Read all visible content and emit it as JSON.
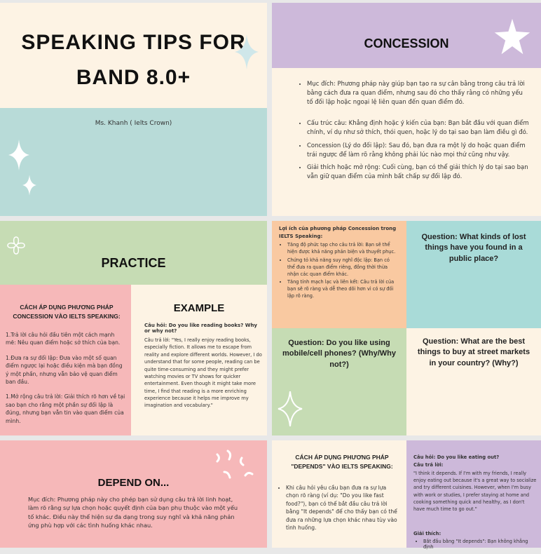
{
  "slides": [
    {
      "title_line1": "SPEAKING TIPS FOR",
      "title_line2": "BAND 8.0+",
      "author": "Ms. Khanh ( Ielts Crown)"
    },
    {
      "title": "CONCESSION",
      "bullets": [
        "Mục đích: Phương pháp này giúp bạn tạo ra sự cân bằng trong câu trả lời bằng cách đưa ra quan điểm, nhưng sau đó cho thấy rằng có những yếu tố đối lập hoặc ngoại lệ liên quan đến quan điểm đó.",
        "Cấu trúc câu: Khẳng định hoặc ý kiến của bạn: Bạn bắt đầu với quan điểm chính, ví dụ như sở thích, thói quen, hoặc lý do tại sao bạn làm điều gì đó.",
        "Concession (Lý do đối lập): Sau đó, bạn đưa ra một lý do hoặc quan điểm trái ngược để làm rõ rằng không phải lúc nào mọi thứ cũng như vậy.",
        "Giải thích hoặc mở rộng: Cuối cùng, bạn có thể giải thích lý do tại sao bạn vẫn giữ quan điểm của mình bất chấp sự đối lập đó."
      ]
    },
    {
      "title": "PRACTICE",
      "method_title": "CÁCH ÁP DỤNG PHƯƠNG PHÁP CONCESSION VÀO IELTS SPEAKING:",
      "steps": [
        "1.Trả lời câu hỏi đầu tiên một cách mạnh mẽ: Nêu quan điểm hoặc sở thích của bạn.",
        "1.Đưa ra sự đối lập: Đưa vào một số quan điểm ngược lại hoặc điều kiện mà bạn đồng ý một phần, nhưng vẫn bảo vệ quan điểm ban đầu.",
        "1.Mở rộng câu trả lời: Giải thích rõ hơn về tại sao bạn cho rằng một phần sự đối lập là đúng, nhưng bạn vẫn tin vào quan điểm của mình."
      ],
      "example_title": "EXAMPLE",
      "example_question": "Câu hỏi: Do you like reading books? Why or why not?",
      "example_answer": "Câu trả lời: \"Yes, I really enjoy reading books, especially fiction. It allows me to escape from reality and explore different worlds. However, I do understand that for some people, reading can be quite time-consuming and they might prefer watching movies or TV shows for quicker entertainment. Even though it might take more time, I find that reading is a more enriching experience because it helps me improve my imagination and vocabulary.\""
    },
    {
      "benefits_title": "Lợi ích của phương pháp Concession trong IELTS Speaking:",
      "benefits": [
        "Tăng độ phức tạp cho câu trả lời: Bạn sẽ thể hiện được khả năng phản biện và thuyết phục.",
        "Chứng tỏ khả năng suy nghĩ độc lập: Bạn có thể đưa ra quan điểm riêng, đồng thời thừa nhận các quan điểm khác.",
        "Tăng tính mạch lạc và liên kết: Câu trả lời của bạn sẽ rõ ràng và dễ theo dõi hơn vì có sự đối lập rõ ràng."
      ],
      "questions": [
        "Question: What kinds of lost things have you found in a public place?",
        "Question: Do you like using mobile/cell phones? (Why/Why not?)",
        "Question: What are the best things to buy at street markets in your country? (Why?)"
      ]
    },
    {
      "title": "DEPEND ON...",
      "text": "Mục đích: Phương pháp này cho phép bạn sử dụng câu trả lời linh hoạt, làm rõ rằng sự lựa chọn hoặc quyết định của bạn phụ thuộc vào một yếu tố khác. Điều này thể hiện sự đa dạng trong suy nghĩ và khả năng phản ứng phù hợp với các tình huống khác nhau."
    },
    {
      "method_title": "CÁCH ÁP DỤNG PHƯƠNG PHÁP \"DEPENDS\" VÀO IELTS SPEAKING:",
      "bullet": "Khi câu hỏi yêu cầu bạn đưa ra sự lựa chọn rõ ràng (ví dụ: \"Do you like fast food?\"), bạn có thể bắt đầu câu trả lời bằng \"It depends\" để cho thấy bạn có thể đưa ra những lựa chọn khác nhau tùy vào tình huống.",
      "question": "Câu hỏi: Do you like eating out?",
      "answer_label": "Câu trả lời:",
      "answer": "\"I think it depends. If I'm with my friends, I really enjoy eating out because it's a great way to socialize and try different cuisines. However, when I'm busy with work or studies, I prefer staying at home and cooking something quick and healthy, as I don't have much time to go out.\"",
      "explain_label": "Giải thích:",
      "explain_bullet": "Bắt đầu bằng \"It depends\": Bạn không khẳng định"
    }
  ]
}
